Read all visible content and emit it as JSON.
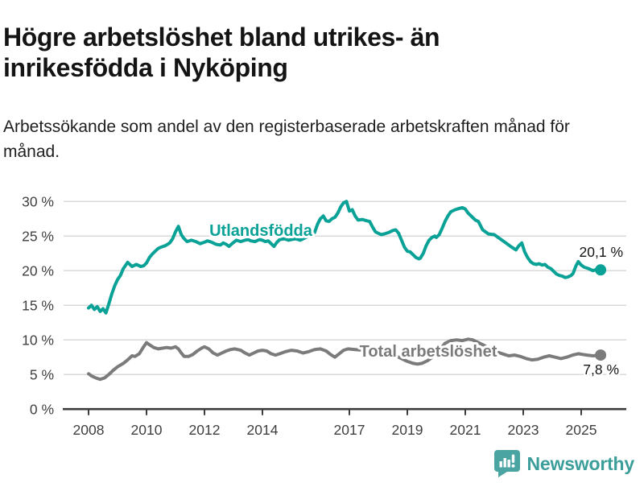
{
  "footer": {
    "brand": "Newsworthy",
    "logo_icon": "newsworthy-speech-bubble-bar-chart-icon"
  },
  "chart_data": {
    "type": "line",
    "title": "Högre arbetslöshet bland utrikes- än inrikesfödda i Nyköping",
    "subtitle": "Arbetssökande som andel av den registerbaserade arbetskraften månad för månad.",
    "grid": "horizontal",
    "legend_position": "inline-labels",
    "ylim": [
      0,
      31.5
    ],
    "x_range": [
      2008,
      2025.67
    ],
    "style": {
      "grid_color": "#d9d9d9",
      "axis_color": "#3c3c3c",
      "axis_text_color": "#3f3f3f",
      "annotation_color": "#141414",
      "halo_color": "#ffffff"
    },
    "y_axis": {
      "unit": "%",
      "ticks": [
        {
          "value": 30,
          "label": "30 %"
        },
        {
          "value": 25,
          "label": "25 %"
        },
        {
          "value": 20,
          "label": "20 %"
        },
        {
          "value": 15,
          "label": "15 %"
        },
        {
          "value": 10,
          "label": "10 %"
        },
        {
          "value": 5,
          "label": "5 %"
        },
        {
          "value": 0,
          "label": "0 %"
        }
      ]
    },
    "x_axis": {
      "ticks": [
        {
          "year": 2008,
          "label": "2008"
        },
        {
          "year": 2010,
          "label": "2010"
        },
        {
          "year": 2012,
          "label": "2012"
        },
        {
          "year": 2014,
          "label": "2014"
        },
        {
          "year": 2017,
          "label": "2017"
        },
        {
          "year": 2019,
          "label": "2019"
        },
        {
          "year": 2021,
          "label": "2021"
        },
        {
          "year": 2023,
          "label": "2023"
        },
        {
          "year": 2025,
          "label": "2025"
        }
      ]
    },
    "series": [
      {
        "name": "Utlandsfödda",
        "color": "#0aa296",
        "end_label": "20,1 %",
        "end_value": 20.1,
        "points": [
          [
            2008.0,
            14.6
          ],
          [
            2008.1,
            15.0
          ],
          [
            2008.2,
            14.4
          ],
          [
            2008.3,
            14.8
          ],
          [
            2008.4,
            14.1
          ],
          [
            2008.5,
            14.5
          ],
          [
            2008.6,
            13.9
          ],
          [
            2008.7,
            15.2
          ],
          [
            2008.8,
            16.6
          ],
          [
            2008.9,
            17.8
          ],
          [
            2009.0,
            18.7
          ],
          [
            2009.1,
            19.3
          ],
          [
            2009.2,
            20.3
          ],
          [
            2009.35,
            21.2
          ],
          [
            2009.5,
            20.6
          ],
          [
            2009.65,
            20.9
          ],
          [
            2009.8,
            20.6
          ],
          [
            2009.9,
            20.7
          ],
          [
            2010.0,
            21.1
          ],
          [
            2010.1,
            21.9
          ],
          [
            2010.2,
            22.4
          ],
          [
            2010.3,
            22.8
          ],
          [
            2010.4,
            23.2
          ],
          [
            2010.5,
            23.4
          ],
          [
            2010.65,
            23.6
          ],
          [
            2010.8,
            24.0
          ],
          [
            2010.9,
            24.6
          ],
          [
            2011.0,
            25.6
          ],
          [
            2011.1,
            26.4
          ],
          [
            2011.2,
            25.2
          ],
          [
            2011.3,
            24.6
          ],
          [
            2011.4,
            24.2
          ],
          [
            2011.55,
            24.4
          ],
          [
            2011.7,
            24.2
          ],
          [
            2011.85,
            23.9
          ],
          [
            2012.0,
            24.1
          ],
          [
            2012.1,
            24.3
          ],
          [
            2012.25,
            24.1
          ],
          [
            2012.4,
            23.8
          ],
          [
            2012.55,
            23.7
          ],
          [
            2012.65,
            24.0
          ],
          [
            2012.75,
            23.8
          ],
          [
            2012.85,
            23.5
          ],
          [
            2012.95,
            23.9
          ],
          [
            2013.1,
            24.4
          ],
          [
            2013.25,
            24.2
          ],
          [
            2013.4,
            24.4
          ],
          [
            2013.5,
            24.5
          ],
          [
            2013.6,
            24.3
          ],
          [
            2013.75,
            24.2
          ],
          [
            2013.9,
            24.5
          ],
          [
            2014.0,
            24.4
          ],
          [
            2014.1,
            24.2
          ],
          [
            2014.2,
            24.3
          ],
          [
            2014.3,
            23.9
          ],
          [
            2014.4,
            23.5
          ],
          [
            2014.5,
            24.1
          ],
          [
            2014.6,
            24.5
          ],
          [
            2014.75,
            24.6
          ],
          [
            2014.9,
            24.4
          ],
          [
            2015.0,
            24.5
          ],
          [
            2015.15,
            24.6
          ],
          [
            2015.3,
            24.4
          ],
          [
            2015.45,
            24.7
          ],
          [
            2015.6,
            25.0
          ],
          [
            2015.7,
            25.3
          ],
          [
            2015.8,
            25.5
          ],
          [
            2015.9,
            26.7
          ],
          [
            2016.0,
            27.5
          ],
          [
            2016.1,
            27.9
          ],
          [
            2016.2,
            27.2
          ],
          [
            2016.3,
            27.1
          ],
          [
            2016.4,
            27.5
          ],
          [
            2016.5,
            27.7
          ],
          [
            2016.6,
            28.3
          ],
          [
            2016.7,
            29.2
          ],
          [
            2016.8,
            29.8
          ],
          [
            2016.9,
            30.0
          ],
          [
            2017.0,
            28.6
          ],
          [
            2017.1,
            28.8
          ],
          [
            2017.2,
            27.9
          ],
          [
            2017.3,
            27.3
          ],
          [
            2017.45,
            27.4
          ],
          [
            2017.6,
            27.2
          ],
          [
            2017.7,
            27.1
          ],
          [
            2017.8,
            26.3
          ],
          [
            2017.9,
            25.6
          ],
          [
            2018.0,
            25.4
          ],
          [
            2018.1,
            25.2
          ],
          [
            2018.2,
            25.3
          ],
          [
            2018.35,
            25.5
          ],
          [
            2018.5,
            25.8
          ],
          [
            2018.6,
            25.9
          ],
          [
            2018.7,
            25.4
          ],
          [
            2018.8,
            24.4
          ],
          [
            2018.9,
            23.4
          ],
          [
            2019.0,
            22.8
          ],
          [
            2019.1,
            22.7
          ],
          [
            2019.2,
            22.3
          ],
          [
            2019.3,
            21.9
          ],
          [
            2019.4,
            21.7
          ],
          [
            2019.45,
            21.8
          ],
          [
            2019.55,
            22.5
          ],
          [
            2019.65,
            23.6
          ],
          [
            2019.75,
            24.4
          ],
          [
            2019.85,
            24.8
          ],
          [
            2019.95,
            25.0
          ],
          [
            2020.0,
            24.8
          ],
          [
            2020.1,
            25.2
          ],
          [
            2020.2,
            26.1
          ],
          [
            2020.3,
            27.1
          ],
          [
            2020.4,
            27.9
          ],
          [
            2020.5,
            28.5
          ],
          [
            2020.65,
            28.8
          ],
          [
            2020.8,
            29.0
          ],
          [
            2020.9,
            29.1
          ],
          [
            2021.0,
            28.9
          ],
          [
            2021.1,
            28.3
          ],
          [
            2021.25,
            27.7
          ],
          [
            2021.35,
            27.3
          ],
          [
            2021.45,
            27.1
          ],
          [
            2021.6,
            25.9
          ],
          [
            2021.8,
            25.3
          ],
          [
            2022.0,
            25.2
          ],
          [
            2022.2,
            24.6
          ],
          [
            2022.4,
            24.0
          ],
          [
            2022.6,
            23.4
          ],
          [
            2022.75,
            23.0
          ],
          [
            2022.85,
            23.6
          ],
          [
            2022.95,
            24.0
          ],
          [
            2023.05,
            22.7
          ],
          [
            2023.15,
            21.9
          ],
          [
            2023.25,
            21.3
          ],
          [
            2023.35,
            21.0
          ],
          [
            2023.45,
            20.9
          ],
          [
            2023.55,
            21.0
          ],
          [
            2023.65,
            20.8
          ],
          [
            2023.75,
            20.9
          ],
          [
            2023.85,
            20.5
          ],
          [
            2023.95,
            20.3
          ],
          [
            2024.05,
            19.9
          ],
          [
            2024.15,
            19.5
          ],
          [
            2024.25,
            19.3
          ],
          [
            2024.35,
            19.2
          ],
          [
            2024.45,
            19.0
          ],
          [
            2024.55,
            19.1
          ],
          [
            2024.65,
            19.3
          ],
          [
            2024.72,
            19.6
          ],
          [
            2024.82,
            20.7
          ],
          [
            2024.9,
            21.3
          ],
          [
            2025.0,
            20.8
          ],
          [
            2025.1,
            20.5
          ],
          [
            2025.25,
            20.3
          ],
          [
            2025.4,
            20.0
          ],
          [
            2025.55,
            20.2
          ],
          [
            2025.67,
            20.1
          ]
        ]
      },
      {
        "name": "Total arbetslöshet",
        "color": "#7b7b7b",
        "end_label": "7,8 %",
        "end_value": 7.8,
        "points": [
          [
            2008.0,
            5.1
          ],
          [
            2008.1,
            4.8
          ],
          [
            2008.25,
            4.5
          ],
          [
            2008.4,
            4.3
          ],
          [
            2008.55,
            4.5
          ],
          [
            2008.7,
            5.0
          ],
          [
            2008.85,
            5.6
          ],
          [
            2009.0,
            6.1
          ],
          [
            2009.2,
            6.6
          ],
          [
            2009.35,
            7.1
          ],
          [
            2009.5,
            7.7
          ],
          [
            2009.6,
            7.6
          ],
          [
            2009.75,
            8.0
          ],
          [
            2009.9,
            9.0
          ],
          [
            2010.0,
            9.6
          ],
          [
            2010.1,
            9.3
          ],
          [
            2010.25,
            8.9
          ],
          [
            2010.4,
            8.7
          ],
          [
            2010.55,
            8.8
          ],
          [
            2010.7,
            8.9
          ],
          [
            2010.85,
            8.8
          ],
          [
            2011.0,
            9.0
          ],
          [
            2011.1,
            8.7
          ],
          [
            2011.2,
            8.1
          ],
          [
            2011.3,
            7.6
          ],
          [
            2011.45,
            7.6
          ],
          [
            2011.6,
            7.9
          ],
          [
            2011.75,
            8.4
          ],
          [
            2011.9,
            8.8
          ],
          [
            2012.0,
            9.0
          ],
          [
            2012.15,
            8.7
          ],
          [
            2012.3,
            8.1
          ],
          [
            2012.45,
            7.8
          ],
          [
            2012.6,
            8.1
          ],
          [
            2012.75,
            8.4
          ],
          [
            2012.9,
            8.6
          ],
          [
            2013.05,
            8.7
          ],
          [
            2013.25,
            8.5
          ],
          [
            2013.4,
            8.1
          ],
          [
            2013.55,
            7.8
          ],
          [
            2013.7,
            8.1
          ],
          [
            2013.85,
            8.4
          ],
          [
            2014.0,
            8.5
          ],
          [
            2014.15,
            8.4
          ],
          [
            2014.3,
            8.0
          ],
          [
            2014.45,
            7.8
          ],
          [
            2014.6,
            8.0
          ],
          [
            2014.8,
            8.3
          ],
          [
            2015.0,
            8.5
          ],
          [
            2015.2,
            8.4
          ],
          [
            2015.4,
            8.1
          ],
          [
            2015.6,
            8.3
          ],
          [
            2015.8,
            8.6
          ],
          [
            2016.0,
            8.7
          ],
          [
            2016.2,
            8.4
          ],
          [
            2016.35,
            7.9
          ],
          [
            2016.5,
            7.5
          ],
          [
            2016.65,
            8.0
          ],
          [
            2016.8,
            8.5
          ],
          [
            2016.95,
            8.7
          ],
          [
            2017.2,
            8.6
          ],
          [
            2017.5,
            8.5
          ],
          [
            2017.8,
            8.4
          ],
          [
            2018.1,
            8.2
          ],
          [
            2018.4,
            7.9
          ],
          [
            2018.7,
            7.5
          ],
          [
            2019.0,
            6.9
          ],
          [
            2019.2,
            6.6
          ],
          [
            2019.35,
            6.5
          ],
          [
            2019.5,
            6.6
          ],
          [
            2019.7,
            7.0
          ],
          [
            2019.9,
            7.6
          ],
          [
            2020.1,
            8.5
          ],
          [
            2020.3,
            9.5
          ],
          [
            2020.5,
            9.9
          ],
          [
            2020.7,
            10.0
          ],
          [
            2020.9,
            9.9
          ],
          [
            2021.0,
            10.0
          ],
          [
            2021.1,
            10.1
          ],
          [
            2021.25,
            10.0
          ],
          [
            2021.45,
            9.6
          ],
          [
            2021.65,
            9.2
          ],
          [
            2021.85,
            8.7
          ],
          [
            2022.0,
            8.4
          ],
          [
            2022.2,
            8.1
          ],
          [
            2022.35,
            7.9
          ],
          [
            2022.5,
            7.7
          ],
          [
            2022.7,
            7.8
          ],
          [
            2022.9,
            7.6
          ],
          [
            2023.1,
            7.3
          ],
          [
            2023.3,
            7.1
          ],
          [
            2023.5,
            7.2
          ],
          [
            2023.7,
            7.5
          ],
          [
            2023.9,
            7.7
          ],
          [
            2024.1,
            7.5
          ],
          [
            2024.3,
            7.3
          ],
          [
            2024.5,
            7.5
          ],
          [
            2024.7,
            7.8
          ],
          [
            2024.9,
            8.0
          ],
          [
            2025.05,
            7.9
          ],
          [
            2025.2,
            7.8
          ],
          [
            2025.4,
            7.7
          ],
          [
            2025.67,
            7.8
          ]
        ]
      }
    ]
  }
}
